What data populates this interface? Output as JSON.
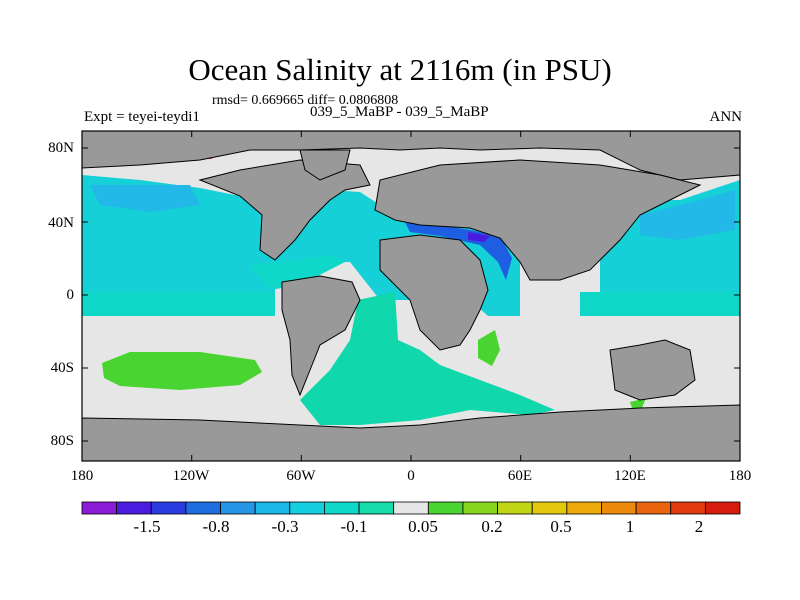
{
  "title": "Ocean Salinity at 2116m (in PSU)",
  "stats": "rmsd= 0.669665 diff= 0.0806808",
  "experiment": "Expt = teyei-teydi1",
  "runs": "039_5_MaBP - 039_5_MaBP",
  "season": "ANN",
  "lat_labels": [
    "80N",
    "40N",
    "0",
    "40S",
    "80S"
  ],
  "lon_labels": [
    "180",
    "120W",
    "60W",
    "0",
    "60E",
    "120E",
    "180"
  ],
  "colorbar": {
    "labels": [
      "-1.5",
      "-0.8",
      "-0.3",
      "-0.1",
      "0.05",
      "0.2",
      "0.5",
      "1",
      "2"
    ],
    "colors": [
      "#8a1cd8",
      "#4a1ce0",
      "#2a3be0",
      "#1e6ee0",
      "#2596e6",
      "#1ab8e8",
      "#14cfe0",
      "#10d8c8",
      "#16dcac",
      "#e6e6e6",
      "#4ad432",
      "#86d620",
      "#c0d614",
      "#e4c80e",
      "#eeaa0a",
      "#ec8a0c",
      "#e8640e",
      "#e03a0e",
      "#d61c0c"
    ]
  },
  "colors": {
    "land": "#999999",
    "no_change": "#e6e6e6",
    "fresher_light": "#16d0d8",
    "fresher_mid": "#22b8e8",
    "teal": "#10d8ac",
    "saltier_green": "#4ad432",
    "saltier_red": "#e03a0e",
    "fresh_blue": "#1e5ee0"
  }
}
